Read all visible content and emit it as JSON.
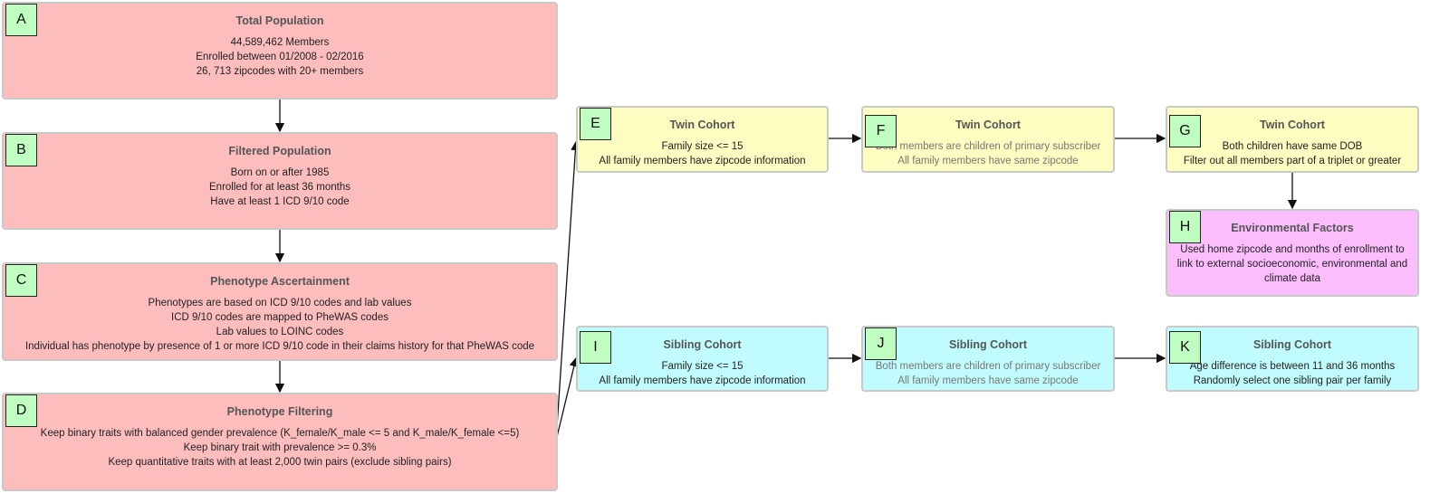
{
  "colors": {
    "population": "#fdbdbd",
    "twin": "#fdfdc2",
    "sibling": "#c0fcfd",
    "environment": "#fcbdfd",
    "label": "#c0fdc0"
  },
  "boxes": {
    "A": {
      "label": "A",
      "title": "Total Population",
      "lines": [
        "44,589,462 Members",
        "Enrolled between 01/2008 - 02/2016",
        "26, 713 zipcodes with 20+ members"
      ]
    },
    "B": {
      "label": "B",
      "title": "Filtered Population",
      "lines": [
        "Born on or after 1985",
        "Enrolled for at least 36 months",
        "Have at least 1 ICD 9/10 code"
      ]
    },
    "C": {
      "label": "C",
      "title": "Phenotype Ascertainment",
      "lines": [
        "Phenotypes are based on ICD 9/10 codes and lab values",
        "ICD 9/10 codes are mapped to PheWAS codes",
        "Lab values to LOINC codes",
        "Individual has phenotype by presence of 1 or more ICD 9/10 code in their claims history for that PheWAS code"
      ]
    },
    "D": {
      "label": "D",
      "title": "Phenotype Filtering",
      "lines": [
        "Keep binary traits with balanced gender prevalence (K_female/K_male <= 5 and K_male/K_female <=5)",
        "Keep binary trait with prevalence >= 0.3%",
        "Keep quantitative traits with at least 2,000 twin pairs (exclude sibling pairs)"
      ]
    },
    "E": {
      "label": "E",
      "title": "Twin Cohort",
      "lines": [
        "Family size <= 15",
        "All family members have zipcode information"
      ]
    },
    "F": {
      "label": "F",
      "title": "Twin Cohort",
      "lines": [
        "Both members are children of primary subscriber",
        "All family members have same zipcode"
      ]
    },
    "G": {
      "label": "G",
      "title": "Twin Cohort",
      "lines": [
        "Both children have same DOB",
        "Filter out all members part of a triplet or greater"
      ]
    },
    "H": {
      "label": "H",
      "title": "Environmental Factors",
      "lines": [
        "Used home zipcode and months of enrollment to",
        "link to external socioeconomic, environmental and",
        "climate data"
      ]
    },
    "I": {
      "label": "I",
      "title": "Sibling Cohort",
      "lines": [
        "Family size <= 15",
        "All family members have zipcode information"
      ]
    },
    "J": {
      "label": "J",
      "title": "Sibling Cohort",
      "lines": [
        "Both members are children of primary subscriber",
        "All family members have same zipcode"
      ]
    },
    "K": {
      "label": "K",
      "title": "Sibling Cohort",
      "lines": [
        "Age difference is between 11 and 36 months",
        "Randomly select one sibling pair per family"
      ]
    }
  },
  "edges": [
    [
      "A",
      "B"
    ],
    [
      "B",
      "C"
    ],
    [
      "C",
      "D"
    ],
    [
      "D",
      "E"
    ],
    [
      "D",
      "I"
    ],
    [
      "E",
      "F"
    ],
    [
      "F",
      "G"
    ],
    [
      "G",
      "H"
    ],
    [
      "I",
      "J"
    ],
    [
      "J",
      "K"
    ]
  ]
}
